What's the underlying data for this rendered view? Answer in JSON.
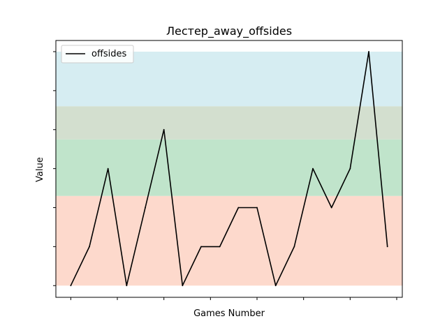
{
  "chart_data": {
    "type": "line",
    "title": "Лестер_away_offsides",
    "xlabel": "Games Number",
    "ylabel": "Value",
    "grid": false,
    "legend_position": "top-left",
    "x": [
      1,
      2,
      3,
      4,
      5,
      6,
      7,
      8,
      9,
      10,
      11,
      12,
      13,
      14,
      15,
      16,
      17,
      18
    ],
    "series": [
      {
        "name": "offsides",
        "color": "#000000",
        "values": [
          0,
          1,
          3,
          0,
          2,
          4,
          0,
          1,
          1,
          2,
          2,
          0,
          1,
          3,
          2,
          3,
          6,
          1
        ]
      }
    ],
    "xlim": [
      0.2,
      18.8
    ],
    "ylim": [
      -0.3,
      6
    ],
    "bands": [
      {
        "from": 0,
        "to": 2.3,
        "color": "#fdd9cc"
      },
      {
        "from": 2.3,
        "to": 3.75,
        "color": "#c0e4cb"
      },
      {
        "from": 3.75,
        "to": 4.6,
        "color": "#d3dfcf"
      },
      {
        "from": 4.6,
        "to": 6,
        "color": "#d6edf2"
      }
    ],
    "x_ticks": [
      1,
      3.5,
      6,
      8.5,
      11,
      13.5,
      16,
      18.5
    ],
    "y_ticks": [
      0,
      1,
      2,
      3,
      4,
      5,
      6
    ]
  }
}
